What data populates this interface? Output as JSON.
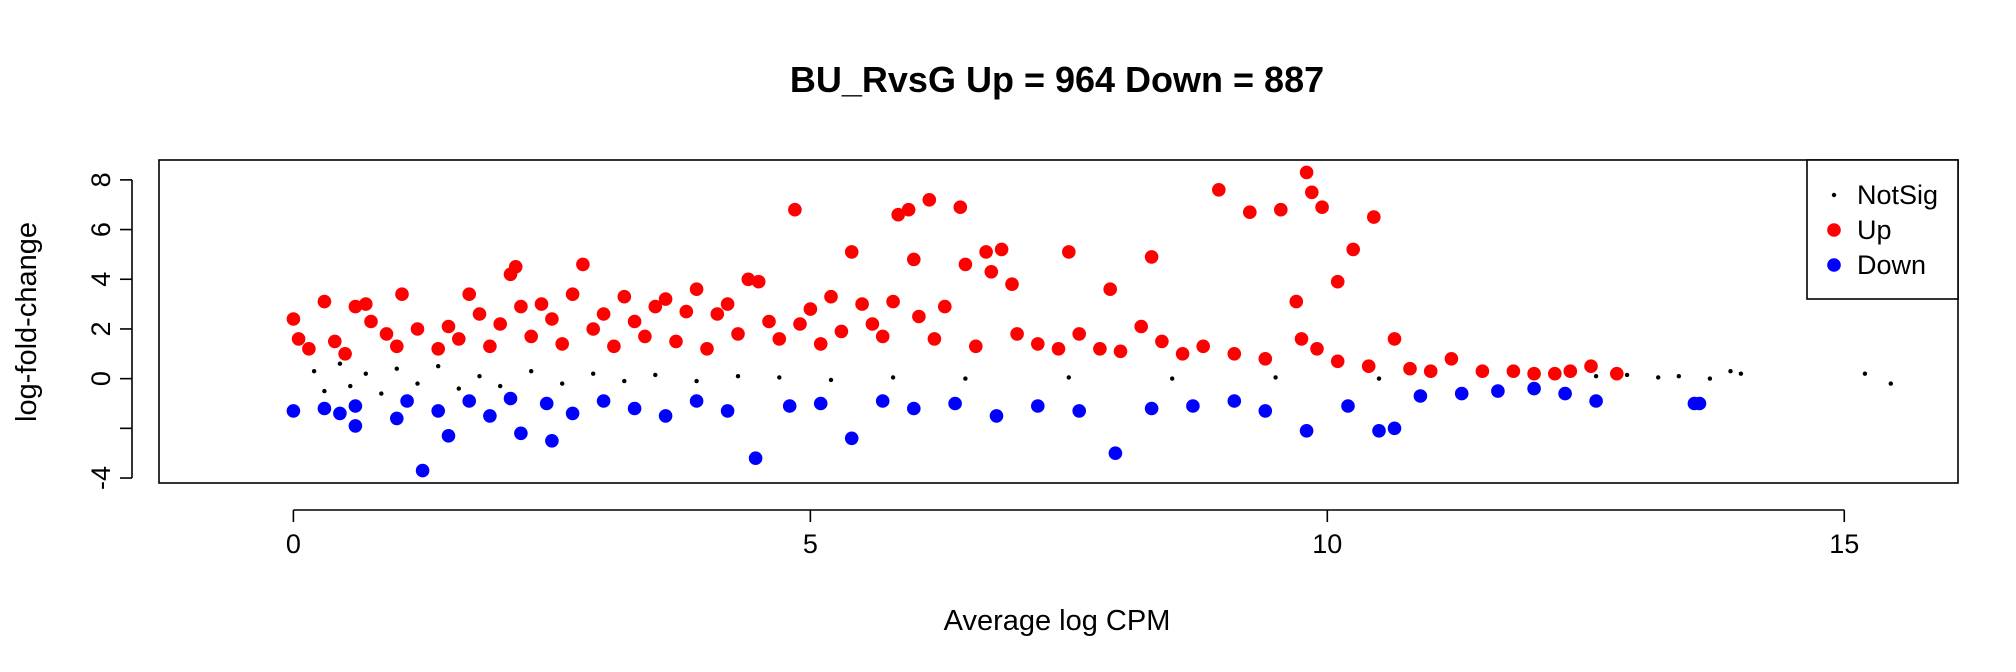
{
  "chart_data": {
    "type": "scatter",
    "title": "BU_RvsG Up = 964 Down = 887",
    "xlabel": "Average log CPM",
    "ylabel": "log-fold-change",
    "xlim": [
      -1.3,
      16.1
    ],
    "ylim": [
      -4.2,
      8.8
    ],
    "x_ticks": [
      0,
      5,
      10,
      15
    ],
    "y_ticks": [
      -4,
      -2,
      0,
      2,
      4,
      6,
      8
    ],
    "y_tick_labels": [
      "-4",
      "",
      "0",
      "2",
      "4",
      "6",
      "8"
    ],
    "legend_position": "top-right",
    "counts": {
      "up": 964,
      "down": 887
    },
    "colors": {
      "NotSig": "#000000",
      "Up": "#ff0000",
      "Down": "#0000ff"
    },
    "series": [
      {
        "name": "NotSig",
        "marker": "small-dot",
        "points": [
          [
            0.2,
            0.3
          ],
          [
            0.3,
            -0.5
          ],
          [
            0.45,
            0.6
          ],
          [
            0.55,
            -0.3
          ],
          [
            0.7,
            0.2
          ],
          [
            0.85,
            -0.6
          ],
          [
            1.0,
            0.4
          ],
          [
            1.2,
            -0.2
          ],
          [
            1.4,
            0.5
          ],
          [
            1.6,
            -0.4
          ],
          [
            1.8,
            0.1
          ],
          [
            2.0,
            -0.3
          ],
          [
            2.3,
            0.3
          ],
          [
            2.6,
            -0.2
          ],
          [
            2.9,
            0.2
          ],
          [
            3.2,
            -0.1
          ],
          [
            3.5,
            0.15
          ],
          [
            3.9,
            -0.1
          ],
          [
            4.3,
            0.1
          ],
          [
            4.7,
            0.05
          ],
          [
            5.2,
            -0.05
          ],
          [
            5.8,
            0.05
          ],
          [
            6.5,
            0.0
          ],
          [
            7.5,
            0.05
          ],
          [
            8.5,
            0.0
          ],
          [
            9.5,
            0.05
          ],
          [
            10.5,
            0.0
          ],
          [
            12.6,
            0.1
          ],
          [
            12.9,
            0.15
          ],
          [
            13.2,
            0.05
          ],
          [
            13.4,
            0.1
          ],
          [
            13.7,
            0.0
          ],
          [
            13.9,
            0.3
          ],
          [
            14.0,
            0.2
          ],
          [
            15.2,
            0.2
          ],
          [
            15.45,
            -0.2
          ]
        ]
      },
      {
        "name": "Up",
        "marker": "filled-circle",
        "points": [
          [
            0.0,
            2.4
          ],
          [
            0.05,
            1.6
          ],
          [
            0.15,
            1.2
          ],
          [
            0.3,
            3.1
          ],
          [
            0.4,
            1.5
          ],
          [
            0.5,
            1.0
          ],
          [
            0.6,
            2.9
          ],
          [
            0.7,
            3.0
          ],
          [
            0.75,
            2.3
          ],
          [
            0.9,
            1.8
          ],
          [
            1.0,
            1.3
          ],
          [
            1.05,
            3.4
          ],
          [
            1.2,
            2.0
          ],
          [
            1.4,
            1.2
          ],
          [
            1.5,
            2.1
          ],
          [
            1.6,
            1.6
          ],
          [
            1.7,
            3.4
          ],
          [
            1.8,
            2.6
          ],
          [
            1.9,
            1.3
          ],
          [
            2.0,
            2.2
          ],
          [
            2.1,
            4.2
          ],
          [
            2.15,
            4.5
          ],
          [
            2.2,
            2.9
          ],
          [
            2.3,
            1.7
          ],
          [
            2.4,
            3.0
          ],
          [
            2.5,
            2.4
          ],
          [
            2.6,
            1.4
          ],
          [
            2.7,
            3.4
          ],
          [
            2.8,
            4.6
          ],
          [
            2.9,
            2.0
          ],
          [
            3.0,
            2.6
          ],
          [
            3.1,
            1.3
          ],
          [
            3.2,
            3.3
          ],
          [
            3.3,
            2.3
          ],
          [
            3.4,
            1.7
          ],
          [
            3.5,
            2.9
          ],
          [
            3.6,
            3.2
          ],
          [
            3.7,
            1.5
          ],
          [
            3.8,
            2.7
          ],
          [
            3.9,
            3.6
          ],
          [
            4.0,
            1.2
          ],
          [
            4.1,
            2.6
          ],
          [
            4.2,
            3.0
          ],
          [
            4.3,
            1.8
          ],
          [
            4.4,
            4.0
          ],
          [
            4.5,
            3.9
          ],
          [
            4.6,
            2.3
          ],
          [
            4.7,
            1.6
          ],
          [
            4.85,
            6.8
          ],
          [
            4.9,
            2.2
          ],
          [
            5.0,
            2.8
          ],
          [
            5.1,
            1.4
          ],
          [
            5.2,
            3.3
          ],
          [
            5.3,
            1.9
          ],
          [
            5.4,
            5.1
          ],
          [
            5.5,
            3.0
          ],
          [
            5.6,
            2.2
          ],
          [
            5.7,
            1.7
          ],
          [
            5.8,
            3.1
          ],
          [
            5.85,
            6.6
          ],
          [
            5.95,
            6.8
          ],
          [
            6.0,
            4.8
          ],
          [
            6.05,
            2.5
          ],
          [
            6.15,
            7.2
          ],
          [
            6.2,
            1.6
          ],
          [
            6.3,
            2.9
          ],
          [
            6.45,
            6.9
          ],
          [
            6.5,
            4.6
          ],
          [
            6.6,
            1.3
          ],
          [
            6.7,
            5.1
          ],
          [
            6.75,
            4.3
          ],
          [
            6.85,
            5.2
          ],
          [
            6.95,
            3.8
          ],
          [
            7.0,
            1.8
          ],
          [
            7.2,
            1.4
          ],
          [
            7.4,
            1.2
          ],
          [
            7.5,
            5.1
          ],
          [
            7.6,
            1.8
          ],
          [
            7.8,
            1.2
          ],
          [
            7.9,
            3.6
          ],
          [
            8.0,
            1.1
          ],
          [
            8.2,
            2.1
          ],
          [
            8.3,
            4.9
          ],
          [
            8.4,
            1.5
          ],
          [
            8.6,
            1.0
          ],
          [
            8.8,
            1.3
          ],
          [
            8.95,
            7.6
          ],
          [
            9.1,
            1.0
          ],
          [
            9.25,
            6.7
          ],
          [
            9.4,
            0.8
          ],
          [
            9.55,
            6.8
          ],
          [
            9.7,
            3.1
          ],
          [
            9.75,
            1.6
          ],
          [
            9.8,
            8.3
          ],
          [
            9.85,
            7.5
          ],
          [
            9.9,
            1.2
          ],
          [
            9.95,
            6.9
          ],
          [
            10.1,
            0.7
          ],
          [
            10.1,
            3.9
          ],
          [
            10.25,
            5.2
          ],
          [
            10.4,
            0.5
          ],
          [
            10.45,
            6.5
          ],
          [
            10.65,
            1.6
          ],
          [
            10.8,
            0.4
          ],
          [
            11.0,
            0.3
          ],
          [
            11.2,
            0.8
          ],
          [
            11.5,
            0.3
          ],
          [
            11.8,
            0.3
          ],
          [
            12.0,
            0.2
          ],
          [
            12.2,
            0.2
          ],
          [
            12.35,
            0.3
          ],
          [
            12.55,
            0.5
          ],
          [
            12.8,
            0.2
          ]
        ]
      },
      {
        "name": "Down",
        "marker": "filled-circle",
        "points": [
          [
            0.0,
            -1.3
          ],
          [
            0.3,
            -1.2
          ],
          [
            0.45,
            -1.4
          ],
          [
            0.6,
            -1.1
          ],
          [
            0.6,
            -1.9
          ],
          [
            1.0,
            -1.6
          ],
          [
            1.1,
            -0.9
          ],
          [
            1.25,
            -3.7
          ],
          [
            1.4,
            -1.3
          ],
          [
            1.5,
            -2.3
          ],
          [
            1.7,
            -0.9
          ],
          [
            1.9,
            -1.5
          ],
          [
            2.1,
            -0.8
          ],
          [
            2.2,
            -2.2
          ],
          [
            2.45,
            -1.0
          ],
          [
            2.5,
            -2.5
          ],
          [
            2.7,
            -1.4
          ],
          [
            3.0,
            -0.9
          ],
          [
            3.3,
            -1.2
          ],
          [
            3.6,
            -1.5
          ],
          [
            3.9,
            -0.9
          ],
          [
            4.2,
            -1.3
          ],
          [
            4.47,
            -3.2
          ],
          [
            4.8,
            -1.1
          ],
          [
            5.1,
            -1.0
          ],
          [
            5.4,
            -2.4
          ],
          [
            5.7,
            -0.9
          ],
          [
            6.0,
            -1.2
          ],
          [
            6.4,
            -1.0
          ],
          [
            6.8,
            -1.5
          ],
          [
            7.2,
            -1.1
          ],
          [
            7.6,
            -1.3
          ],
          [
            7.95,
            -3.0
          ],
          [
            8.3,
            -1.2
          ],
          [
            8.7,
            -1.1
          ],
          [
            9.1,
            -0.9
          ],
          [
            9.4,
            -1.3
          ],
          [
            9.8,
            -2.1
          ],
          [
            10.2,
            -1.1
          ],
          [
            10.5,
            -2.1
          ],
          [
            10.65,
            -2.0
          ],
          [
            10.9,
            -0.7
          ],
          [
            11.3,
            -0.6
          ],
          [
            11.65,
            -0.5
          ],
          [
            12.0,
            -0.4
          ],
          [
            12.3,
            -0.6
          ],
          [
            12.6,
            -0.9
          ],
          [
            13.55,
            -1.0
          ],
          [
            13.6,
            -1.0
          ]
        ]
      }
    ]
  }
}
